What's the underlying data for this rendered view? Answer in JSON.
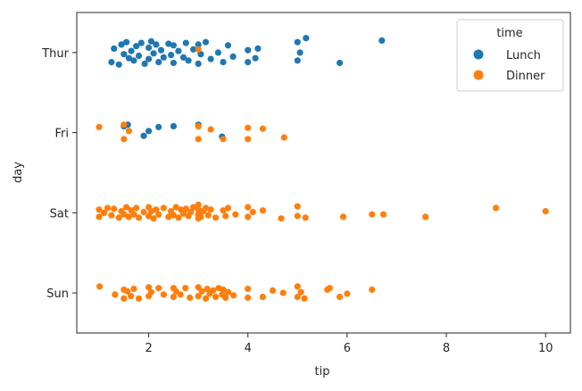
{
  "chart_data": {
    "type": "scatter",
    "xlabel": "tip",
    "ylabel": "day",
    "xlim": [
      0.55,
      10.5
    ],
    "x_ticks": [
      2,
      4,
      6,
      8,
      10
    ],
    "categories": [
      "Thur",
      "Fri",
      "Sat",
      "Sun"
    ],
    "legend": {
      "title": "time",
      "placement": "top-right"
    },
    "series": [
      {
        "name": "Lunch",
        "color": "#1f77b4",
        "points": [
          {
            "day": "Thur",
            "x": 1.25,
            "j": -0.12
          },
          {
            "day": "Thur",
            "x": 1.3,
            "j": 0.05
          },
          {
            "day": "Thur",
            "x": 1.4,
            "j": -0.15
          },
          {
            "day": "Thur",
            "x": 1.45,
            "j": 0.1
          },
          {
            "day": "Thur",
            "x": 1.5,
            "j": -0.02
          },
          {
            "day": "Thur",
            "x": 1.55,
            "j": 0.13
          },
          {
            "day": "Thur",
            "x": 1.6,
            "j": -0.07
          },
          {
            "day": "Thur",
            "x": 1.65,
            "j": 0.02
          },
          {
            "day": "Thur",
            "x": 1.7,
            "j": -0.1
          },
          {
            "day": "Thur",
            "x": 1.75,
            "j": 0.08
          },
          {
            "day": "Thur",
            "x": 1.8,
            "j": -0.04
          },
          {
            "day": "Thur",
            "x": 1.85,
            "j": 0.12
          },
          {
            "day": "Thur",
            "x": 1.92,
            "j": -0.14
          },
          {
            "day": "Thur",
            "x": 2.0,
            "j": 0.06
          },
          {
            "day": "Thur",
            "x": 2.0,
            "j": -0.08
          },
          {
            "day": "Thur",
            "x": 2.05,
            "j": 0.14
          },
          {
            "day": "Thur",
            "x": 2.1,
            "j": -0.01
          },
          {
            "day": "Thur",
            "x": 2.15,
            "j": 0.1
          },
          {
            "day": "Thur",
            "x": 2.2,
            "j": -0.12
          },
          {
            "day": "Thur",
            "x": 2.25,
            "j": 0.03
          },
          {
            "day": "Thur",
            "x": 2.3,
            "j": -0.06
          },
          {
            "day": "Thur",
            "x": 2.4,
            "j": 0.11
          },
          {
            "day": "Thur",
            "x": 2.45,
            "j": -0.03
          },
          {
            "day": "Thur",
            "x": 2.5,
            "j": 0.09
          },
          {
            "day": "Thur",
            "x": 2.5,
            "j": -0.13
          },
          {
            "day": "Thur",
            "x": 2.6,
            "j": 0.02
          },
          {
            "day": "Thur",
            "x": 2.7,
            "j": -0.06
          },
          {
            "day": "Thur",
            "x": 2.75,
            "j": 0.12
          },
          {
            "day": "Thur",
            "x": 2.8,
            "j": -0.1
          },
          {
            "day": "Thur",
            "x": 2.9,
            "j": 0.04
          },
          {
            "day": "Thur",
            "x": 3.0,
            "j": -0.14
          },
          {
            "day": "Thur",
            "x": 3.0,
            "j": 0.1
          },
          {
            "day": "Thur",
            "x": 3.05,
            "j": -0.02
          },
          {
            "day": "Thur",
            "x": 3.15,
            "j": 0.13
          },
          {
            "day": "Thur",
            "x": 3.25,
            "j": -0.08
          },
          {
            "day": "Thur",
            "x": 3.4,
            "j": 0.0
          },
          {
            "day": "Thur",
            "x": 3.5,
            "j": -0.12
          },
          {
            "day": "Thur",
            "x": 3.6,
            "j": 0.09
          },
          {
            "day": "Thur",
            "x": 3.7,
            "j": -0.05
          },
          {
            "day": "Thur",
            "x": 4.0,
            "j": 0.03
          },
          {
            "day": "Thur",
            "x": 4.0,
            "j": -0.12
          },
          {
            "day": "Thur",
            "x": 4.15,
            "j": -0.07
          },
          {
            "day": "Thur",
            "x": 4.2,
            "j": 0.05
          },
          {
            "day": "Thur",
            "x": 5.0,
            "j": -0.1
          },
          {
            "day": "Thur",
            "x": 5.0,
            "j": 0.13
          },
          {
            "day": "Thur",
            "x": 5.05,
            "j": 0.0
          },
          {
            "day": "Thur",
            "x": 5.17,
            "j": 0.18
          },
          {
            "day": "Thur",
            "x": 5.85,
            "j": -0.13
          },
          {
            "day": "Thur",
            "x": 6.7,
            "j": 0.15
          },
          {
            "day": "Fri",
            "x": 1.5,
            "j": 0.08
          },
          {
            "day": "Fri",
            "x": 1.58,
            "j": 0.1
          },
          {
            "day": "Fri",
            "x": 1.9,
            "j": -0.04
          },
          {
            "day": "Fri",
            "x": 2.0,
            "j": 0.02
          },
          {
            "day": "Fri",
            "x": 2.2,
            "j": 0.07
          },
          {
            "day": "Fri",
            "x": 2.5,
            "j": 0.08
          },
          {
            "day": "Fri",
            "x": 3.0,
            "j": 0.1
          },
          {
            "day": "Fri",
            "x": 3.48,
            "j": -0.05
          }
        ]
      },
      {
        "name": "Dinner",
        "color": "#ff7f0e",
        "points": [
          {
            "day": "Thur",
            "x": 3.0,
            "j": 0.04
          },
          {
            "day": "Fri",
            "x": 1.0,
            "j": 0.07
          },
          {
            "day": "Fri",
            "x": 1.5,
            "j": 0.1
          },
          {
            "day": "Fri",
            "x": 1.5,
            "j": -0.08
          },
          {
            "day": "Fri",
            "x": 1.6,
            "j": 0.02
          },
          {
            "day": "Fri",
            "x": 3.0,
            "j": 0.08
          },
          {
            "day": "Fri",
            "x": 3.0,
            "j": -0.08
          },
          {
            "day": "Fri",
            "x": 3.25,
            "j": 0.04
          },
          {
            "day": "Fri",
            "x": 3.5,
            "j": -0.08
          },
          {
            "day": "Fri",
            "x": 4.0,
            "j": 0.06
          },
          {
            "day": "Fri",
            "x": 4.0,
            "j": -0.08
          },
          {
            "day": "Fri",
            "x": 4.3,
            "j": 0.05
          },
          {
            "day": "Fri",
            "x": 4.73,
            "j": -0.06
          },
          {
            "day": "Sat",
            "x": 1.0,
            "j": 0.04
          },
          {
            "day": "Sat",
            "x": 1.0,
            "j": -0.05
          },
          {
            "day": "Sat",
            "x": 1.1,
            "j": 0.0
          },
          {
            "day": "Sat",
            "x": 1.17,
            "j": 0.06
          },
          {
            "day": "Sat",
            "x": 1.25,
            "j": -0.03
          },
          {
            "day": "Sat",
            "x": 1.3,
            "j": 0.05
          },
          {
            "day": "Sat",
            "x": 1.4,
            "j": -0.06
          },
          {
            "day": "Sat",
            "x": 1.45,
            "j": 0.02
          },
          {
            "day": "Sat",
            "x": 1.5,
            "j": -0.02
          },
          {
            "day": "Sat",
            "x": 1.55,
            "j": 0.07
          },
          {
            "day": "Sat",
            "x": 1.6,
            "j": -0.05
          },
          {
            "day": "Sat",
            "x": 1.65,
            "j": 0.03
          },
          {
            "day": "Sat",
            "x": 1.7,
            "j": -0.02
          },
          {
            "day": "Sat",
            "x": 1.75,
            "j": 0.06
          },
          {
            "day": "Sat",
            "x": 1.8,
            "j": -0.06
          },
          {
            "day": "Sat",
            "x": 1.9,
            "j": 0.01
          },
          {
            "day": "Sat",
            "x": 2.0,
            "j": 0.07
          },
          {
            "day": "Sat",
            "x": 2.0,
            "j": -0.04
          },
          {
            "day": "Sat",
            "x": 2.05,
            "j": 0.02
          },
          {
            "day": "Sat",
            "x": 2.1,
            "j": -0.07
          },
          {
            "day": "Sat",
            "x": 2.15,
            "j": 0.04
          },
          {
            "day": "Sat",
            "x": 2.2,
            "j": -0.02
          },
          {
            "day": "Sat",
            "x": 2.3,
            "j": 0.06
          },
          {
            "day": "Sat",
            "x": 2.4,
            "j": -0.05
          },
          {
            "day": "Sat",
            "x": 2.45,
            "j": 0.02
          },
          {
            "day": "Sat",
            "x": 2.5,
            "j": -0.03
          },
          {
            "day": "Sat",
            "x": 2.55,
            "j": 0.07
          },
          {
            "day": "Sat",
            "x": 2.6,
            "j": -0.06
          },
          {
            "day": "Sat",
            "x": 2.65,
            "j": 0.04
          },
          {
            "day": "Sat",
            "x": 2.7,
            "j": -0.01
          },
          {
            "day": "Sat",
            "x": 2.75,
            "j": 0.05
          },
          {
            "day": "Sat",
            "x": 2.8,
            "j": -0.04
          },
          {
            "day": "Sat",
            "x": 2.85,
            "j": 0.01
          },
          {
            "day": "Sat",
            "x": 2.9,
            "j": 0.07
          },
          {
            "day": "Sat",
            "x": 3.0,
            "j": -0.07
          },
          {
            "day": "Sat",
            "x": 3.0,
            "j": 0.04
          },
          {
            "day": "Sat",
            "x": 3.0,
            "j": -0.02
          },
          {
            "day": "Sat",
            "x": 3.0,
            "j": 0.1
          },
          {
            "day": "Sat",
            "x": 3.05,
            "j": -0.05
          },
          {
            "day": "Sat",
            "x": 3.1,
            "j": 0.02
          },
          {
            "day": "Sat",
            "x": 3.15,
            "j": 0.06
          },
          {
            "day": "Sat",
            "x": 3.2,
            "j": -0.03
          },
          {
            "day": "Sat",
            "x": 3.25,
            "j": 0.04
          },
          {
            "day": "Sat",
            "x": 3.35,
            "j": -0.06
          },
          {
            "day": "Sat",
            "x": 3.5,
            "j": 0.03
          },
          {
            "day": "Sat",
            "x": 3.55,
            "j": -0.04
          },
          {
            "day": "Sat",
            "x": 3.6,
            "j": 0.06
          },
          {
            "day": "Sat",
            "x": 3.75,
            "j": -0.02
          },
          {
            "day": "Sat",
            "x": 4.0,
            "j": 0.07
          },
          {
            "day": "Sat",
            "x": 4.0,
            "j": -0.05
          },
          {
            "day": "Sat",
            "x": 4.1,
            "j": 0.01
          },
          {
            "day": "Sat",
            "x": 4.3,
            "j": 0.03
          },
          {
            "day": "Sat",
            "x": 4.67,
            "j": -0.07
          },
          {
            "day": "Sat",
            "x": 5.0,
            "j": 0.08
          },
          {
            "day": "Sat",
            "x": 5.0,
            "j": -0.04
          },
          {
            "day": "Sat",
            "x": 5.16,
            "j": -0.06
          },
          {
            "day": "Sat",
            "x": 5.92,
            "j": -0.05
          },
          {
            "day": "Sat",
            "x": 6.5,
            "j": -0.02
          },
          {
            "day": "Sat",
            "x": 6.73,
            "j": -0.02
          },
          {
            "day": "Sat",
            "x": 7.58,
            "j": -0.05
          },
          {
            "day": "Sat",
            "x": 9.0,
            "j": 0.06
          },
          {
            "day": "Sat",
            "x": 10.0,
            "j": 0.02
          },
          {
            "day": "Sun",
            "x": 1.01,
            "j": 0.08
          },
          {
            "day": "Sun",
            "x": 1.32,
            "j": -0.02
          },
          {
            "day": "Sun",
            "x": 1.5,
            "j": 0.04
          },
          {
            "day": "Sun",
            "x": 1.5,
            "j": -0.07
          },
          {
            "day": "Sun",
            "x": 1.57,
            "j": 0.02
          },
          {
            "day": "Sun",
            "x": 1.64,
            "j": -0.04
          },
          {
            "day": "Sun",
            "x": 1.7,
            "j": 0.05
          },
          {
            "day": "Sun",
            "x": 1.8,
            "j": -0.07
          },
          {
            "day": "Sun",
            "x": 2.0,
            "j": 0.07
          },
          {
            "day": "Sun",
            "x": 2.0,
            "j": -0.04
          },
          {
            "day": "Sun",
            "x": 2.05,
            "j": 0.01
          },
          {
            "day": "Sun",
            "x": 2.2,
            "j": 0.06
          },
          {
            "day": "Sun",
            "x": 2.3,
            "j": -0.02
          },
          {
            "day": "Sun",
            "x": 2.5,
            "j": 0.06
          },
          {
            "day": "Sun",
            "x": 2.5,
            "j": -0.05
          },
          {
            "day": "Sun",
            "x": 2.55,
            "j": 0.02
          },
          {
            "day": "Sun",
            "x": 2.64,
            "j": -0.02
          },
          {
            "day": "Sun",
            "x": 2.74,
            "j": 0.06
          },
          {
            "day": "Sun",
            "x": 2.83,
            "j": -0.06
          },
          {
            "day": "Sun",
            "x": 3.0,
            "j": 0.07
          },
          {
            "day": "Sun",
            "x": 3.0,
            "j": -0.04
          },
          {
            "day": "Sun",
            "x": 3.07,
            "j": 0.02
          },
          {
            "day": "Sun",
            "x": 3.15,
            "j": -0.07
          },
          {
            "day": "Sun",
            "x": 3.18,
            "j": 0.05
          },
          {
            "day": "Sun",
            "x": 3.23,
            "j": -0.01
          },
          {
            "day": "Sun",
            "x": 3.3,
            "j": 0.03
          },
          {
            "day": "Sun",
            "x": 3.35,
            "j": -0.05
          },
          {
            "day": "Sun",
            "x": 3.41,
            "j": 0.06
          },
          {
            "day": "Sun",
            "x": 3.48,
            "j": -0.02
          },
          {
            "day": "Sun",
            "x": 3.5,
            "j": 0.04
          },
          {
            "day": "Sun",
            "x": 3.55,
            "j": -0.06
          },
          {
            "day": "Sun",
            "x": 3.6,
            "j": 0.01
          },
          {
            "day": "Sun",
            "x": 3.71,
            "j": -0.03
          },
          {
            "day": "Sun",
            "x": 4.0,
            "j": 0.05
          },
          {
            "day": "Sun",
            "x": 4.0,
            "j": -0.06
          },
          {
            "day": "Sun",
            "x": 4.3,
            "j": -0.05
          },
          {
            "day": "Sun",
            "x": 4.5,
            "j": 0.03
          },
          {
            "day": "Sun",
            "x": 4.71,
            "j": 0.0
          },
          {
            "day": "Sun",
            "x": 5.0,
            "j": 0.08
          },
          {
            "day": "Sun",
            "x": 5.0,
            "j": -0.05
          },
          {
            "day": "Sun",
            "x": 5.07,
            "j": 0.01
          },
          {
            "day": "Sun",
            "x": 5.14,
            "j": -0.07
          },
          {
            "day": "Sun",
            "x": 5.6,
            "j": 0.04
          },
          {
            "day": "Sun",
            "x": 5.65,
            "j": 0.06
          },
          {
            "day": "Sun",
            "x": 5.85,
            "j": -0.05
          },
          {
            "day": "Sun",
            "x": 6.0,
            "j": -0.01
          },
          {
            "day": "Sun",
            "x": 6.5,
            "j": 0.04
          }
        ]
      }
    ]
  }
}
